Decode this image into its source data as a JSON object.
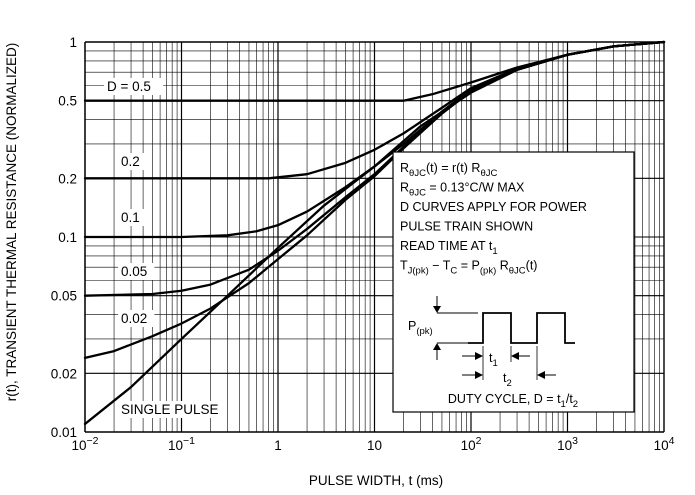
{
  "chart_data": {
    "type": "line",
    "title": "",
    "xlabel": "PULSE WIDTH, t (ms)",
    "ylabel": "r(t), TRANSIENT THERMAL RESISTANCE (NORMALIZED)",
    "xscale": "log",
    "yscale": "log",
    "xlim": [
      0.01,
      10000
    ],
    "ylim": [
      0.01,
      1
    ],
    "grid": true,
    "x_ticks": [
      0.01,
      0.1,
      1,
      10,
      100,
      1000,
      10000
    ],
    "x_tick_labels": [
      {
        "base": "10",
        "exp": "−2"
      },
      {
        "base": "10",
        "exp": "−1"
      },
      {
        "base": "1",
        "exp": ""
      },
      {
        "base": "10",
        "exp": ""
      },
      {
        "base": "10",
        "exp": "2"
      },
      {
        "base": "10",
        "exp": "3"
      },
      {
        "base": "10",
        "exp": "4"
      }
    ],
    "y_ticks": [
      0.01,
      0.02,
      0.05,
      0.1,
      0.2,
      0.5,
      1
    ],
    "y_tick_labels": [
      "0.01",
      "0.02",
      "0.05",
      "0.1",
      "0.2",
      "0.5",
      "1"
    ],
    "series": [
      {
        "name": "D = 0.5",
        "x": [
          0.01,
          1,
          10,
          20,
          40,
          100,
          300,
          1000,
          3000,
          10000
        ],
        "y": [
          0.5,
          0.5,
          0.5,
          0.5,
          0.54,
          0.62,
          0.74,
          0.86,
          0.95,
          1.0
        ]
      },
      {
        "name": "0.2",
        "x": [
          0.01,
          0.3,
          0.8,
          2,
          5,
          10,
          20,
          50,
          100,
          300,
          1000,
          3000,
          10000
        ],
        "y": [
          0.2,
          0.2,
          0.2,
          0.21,
          0.24,
          0.28,
          0.34,
          0.46,
          0.58,
          0.73,
          0.86,
          0.95,
          1.0
        ]
      },
      {
        "name": "0.1",
        "x": [
          0.01,
          0.1,
          0.3,
          0.6,
          1,
          2,
          5,
          10,
          20,
          50,
          100,
          300,
          1000,
          3000,
          10000
        ],
        "y": [
          0.1,
          0.1,
          0.102,
          0.107,
          0.115,
          0.135,
          0.18,
          0.23,
          0.3,
          0.44,
          0.57,
          0.72,
          0.86,
          0.95,
          1.0
        ]
      },
      {
        "name": "0.05",
        "x": [
          0.01,
          0.05,
          0.1,
          0.2,
          0.5,
          1,
          2,
          5,
          10,
          20,
          50,
          100,
          300,
          1000,
          3000,
          10000
        ],
        "y": [
          0.05,
          0.051,
          0.053,
          0.057,
          0.068,
          0.085,
          0.11,
          0.16,
          0.21,
          0.29,
          0.43,
          0.56,
          0.72,
          0.86,
          0.95,
          1.0
        ]
      },
      {
        "name": "0.02",
        "x": [
          0.01,
          0.02,
          0.05,
          0.1,
          0.2,
          0.5,
          1,
          2,
          5,
          10,
          20,
          50,
          100,
          300,
          1000,
          3000,
          10000
        ],
        "y": [
          0.024,
          0.026,
          0.031,
          0.036,
          0.043,
          0.058,
          0.077,
          0.102,
          0.155,
          0.205,
          0.285,
          0.43,
          0.56,
          0.72,
          0.86,
          0.95,
          1.0
        ]
      },
      {
        "name": "SINGLE PULSE",
        "x": [
          0.01,
          0.03,
          0.1,
          0.3,
          1,
          3,
          10,
          30,
          100,
          300,
          1000,
          3000,
          10000
        ],
        "y": [
          0.011,
          0.017,
          0.03,
          0.05,
          0.088,
          0.145,
          0.23,
          0.37,
          0.55,
          0.72,
          0.86,
          0.95,
          1.0
        ]
      }
    ],
    "curve_labels": [
      "D = 0.5",
      "0.2",
      "0.1",
      "0.05",
      "0.02",
      "SINGLE PULSE"
    ],
    "annotation_lines": [
      {
        "base": "R",
        "parts": [
          [
            "sub",
            "θJC"
          ],
          [
            "n",
            "(t) = r(t) R"
          ],
          [
            "sub",
            "θJC"
          ]
        ]
      },
      {
        "base": "R",
        "parts": [
          [
            "sub",
            "θJC"
          ],
          [
            "n",
            " = 0.13°C/W MAX"
          ]
        ]
      },
      {
        "base": "D CURVES APPLY FOR POWER",
        "parts": []
      },
      {
        "base": "PULSE TRAIN SHOWN",
        "parts": []
      },
      {
        "base": "READ TIME AT t",
        "parts": [
          [
            "sub",
            "1"
          ]
        ]
      },
      {
        "base": "T",
        "parts": [
          [
            "sub",
            "J(pk)"
          ],
          [
            "n",
            " − T"
          ],
          [
            "sub",
            "C"
          ],
          [
            "n",
            " = P"
          ],
          [
            "sub",
            "(pk)"
          ],
          [
            "n",
            " R"
          ],
          [
            "sub",
            "θJC"
          ],
          [
            "n",
            "(t)"
          ]
        ]
      }
    ],
    "inset": {
      "power_label": {
        "base": "P",
        "sub": "(pk)"
      },
      "t1_label": {
        "base": "t",
        "sub": "1"
      },
      "t2_label": {
        "base": "t",
        "sub": "2"
      },
      "duty_cycle": {
        "text": "DUTY CYCLE, D = t",
        "sub1": "1",
        "mid": "/t",
        "sub2": "2"
      }
    }
  }
}
